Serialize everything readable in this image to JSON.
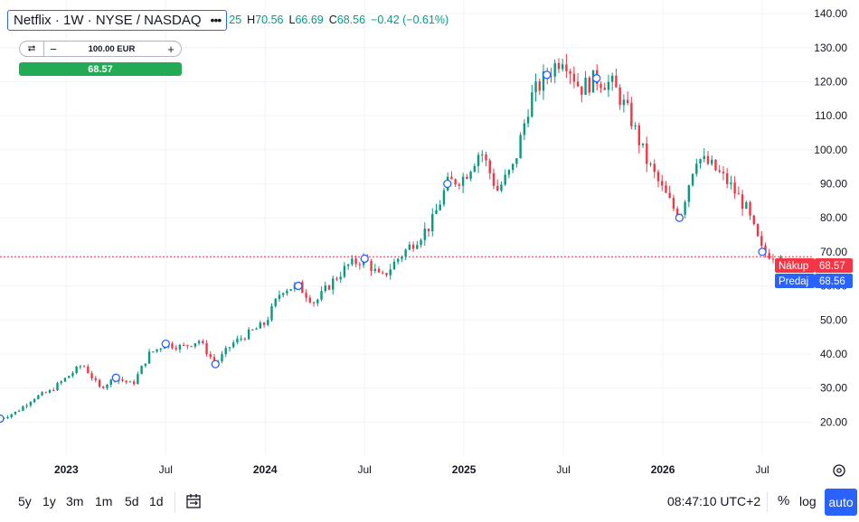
{
  "legend": {
    "symbol": "Netflix · 1W · NYSE / NASDAQ",
    "more_icon": "•••",
    "open_label": "25",
    "high_label": "H",
    "high": "70.56",
    "low_label": "L",
    "low": "66.69",
    "close_label": "C",
    "close": "68.56",
    "change": "−0.42 (−0.61%)"
  },
  "trade": {
    "swap_icon": "⮂",
    "minus": "−",
    "quantity": "100.00 EUR",
    "plus": "+",
    "price": "68.57"
  },
  "price_tags": {
    "buy_label": "Nákup",
    "buy_value": "68.57",
    "sell_label": "Predaj",
    "sell_value": "68.56"
  },
  "bottom_bar": {
    "timeframes": [
      "5y",
      "1y",
      "3m",
      "1m",
      "5d",
      "1d"
    ],
    "calendar_icon": "calendar-range-icon",
    "time": "08:47:10 UTC+2",
    "percent": "%",
    "log": "log",
    "auto": "auto"
  },
  "colors": {
    "up": "#089981",
    "down": "#f23645",
    "accent": "#2962ff",
    "buy": "#f23645",
    "sell": "#2962ff"
  },
  "chart_data": {
    "type": "candlestick",
    "interval": "1W",
    "y_ticks": [
      20,
      30,
      40,
      50,
      60,
      70,
      80,
      90,
      100,
      110,
      120,
      130,
      140
    ],
    "y_tick_labels": [
      "20.00",
      "30.00",
      "40.00",
      "50.00",
      "60.00",
      "70.00",
      "80.00",
      "90.00",
      "100.00",
      "110.00",
      "120.00",
      "130.00",
      "140.00"
    ],
    "ylim": [
      10,
      144
    ],
    "x_ticks": [
      "2023",
      "Jul",
      "2024",
      "Jul",
      "2025",
      "Jul",
      "2026",
      "Jul"
    ],
    "x_tick_dates": [
      "2023-01",
      "2023-07",
      "2024-01",
      "2024-07",
      "2025-01",
      "2025-07",
      "2026-01",
      "2026-07"
    ],
    "x_range": [
      "2022-09",
      "2026-10"
    ],
    "current_price_line": 68.56,
    "close_path": [
      [
        "2022-09",
        21
      ],
      [
        "2022-10",
        23
      ],
      [
        "2022-11",
        27
      ],
      [
        "2022-12",
        29
      ],
      [
        "2023-01",
        33
      ],
      [
        "2023-02",
        37
      ],
      [
        "2023-03",
        30
      ],
      [
        "2023-04",
        33
      ],
      [
        "2023-05",
        31
      ],
      [
        "2023-06",
        40
      ],
      [
        "2023-07",
        43
      ],
      [
        "2023-08",
        42
      ],
      [
        "2023-09",
        44
      ],
      [
        "2023-10",
        37
      ],
      [
        "2023-11",
        43
      ],
      [
        "2023-12",
        46
      ],
      [
        "2024-01",
        49
      ],
      [
        "2024-02",
        59
      ],
      [
        "2024-03",
        60
      ],
      [
        "2024-04",
        55
      ],
      [
        "2024-05",
        61
      ],
      [
        "2024-06",
        66
      ],
      [
        "2024-07",
        68
      ],
      [
        "2024-08",
        62
      ],
      [
        "2024-09",
        68
      ],
      [
        "2024-10",
        73
      ],
      [
        "2024-11",
        78
      ],
      [
        "2024-12",
        90
      ],
      [
        "2025-01",
        92
      ],
      [
        "2025-02",
        100
      ],
      [
        "2025-03",
        88
      ],
      [
        "2025-04",
        95
      ],
      [
        "2025-05",
        115
      ],
      [
        "2025-06",
        122
      ],
      [
        "2025-07",
        128
      ],
      [
        "2025-08",
        118
      ],
      [
        "2025-09",
        121
      ],
      [
        "2025-10",
        119
      ],
      [
        "2025-11",
        110
      ],
      [
        "2025-12",
        97
      ],
      [
        "2026-01",
        88
      ],
      [
        "2026-02",
        80
      ],
      [
        "2026-03",
        98
      ],
      [
        "2026-04",
        95
      ],
      [
        "2026-05",
        90
      ],
      [
        "2026-06",
        83
      ],
      [
        "2026-07",
        70
      ],
      [
        "2026-08",
        68.56
      ]
    ]
  }
}
